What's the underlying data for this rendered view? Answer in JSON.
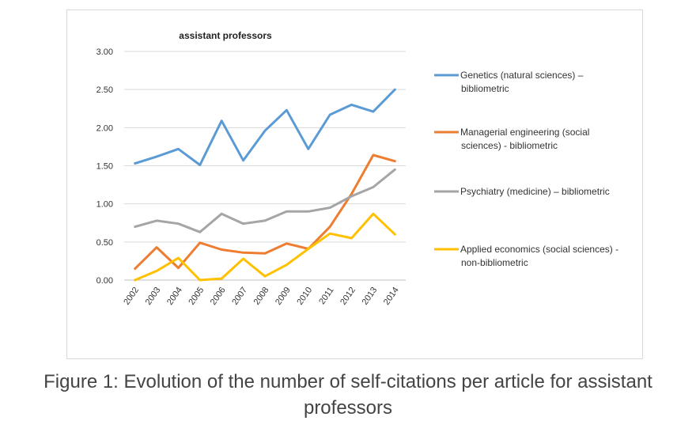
{
  "chart_data": {
    "type": "line",
    "title": "assistant professors",
    "xlabel": "",
    "ylabel": "",
    "ylim": [
      0,
      3
    ],
    "yticks": [
      "0.00",
      "0.50",
      "1.00",
      "1.50",
      "2.00",
      "2.50",
      "3.00"
    ],
    "categories": [
      "2002",
      "2003",
      "2004",
      "2005",
      "2006",
      "2007",
      "2008",
      "2009",
      "2010",
      "2011",
      "2012",
      "2013",
      "2014"
    ],
    "legend_position": "right",
    "series": [
      {
        "name": "Genetics (natural sciences) – bibliometric",
        "legend_lines": [
          "Genetics (natural sciences) –",
          "bibliometric"
        ],
        "color": "#5b9bd5",
        "values": [
          1.53,
          1.62,
          1.72,
          1.51,
          2.09,
          1.57,
          1.96,
          2.23,
          1.72,
          2.17,
          2.3,
          2.21,
          2.5
        ]
      },
      {
        "name": "Managerial engineering (social sciences) - bibliometric",
        "legend_lines": [
          "Managerial engineering (social",
          "sciences) - bibliometric"
        ],
        "color": "#ed7d31",
        "values": [
          0.15,
          0.43,
          0.16,
          0.49,
          0.4,
          0.36,
          0.35,
          0.48,
          0.41,
          0.7,
          1.13,
          1.64,
          1.56
        ]
      },
      {
        "name": "Psychiatry (medicine) – bibliometric",
        "legend_lines": [
          "Psychiatry (medicine) – bibliometric"
        ],
        "color": "#a5a5a5",
        "values": [
          0.7,
          0.78,
          0.74,
          0.63,
          0.87,
          0.74,
          0.78,
          0.9,
          0.9,
          0.95,
          1.1,
          1.22,
          1.45
        ]
      },
      {
        "name": "Applied economics (social sciences) - non-bibliometric",
        "legend_lines": [
          "Applied economics (social sciences) -",
          "non-bibliometric"
        ],
        "color": "#ffc000",
        "values": [
          0.0,
          0.12,
          0.29,
          0.0,
          0.02,
          0.28,
          0.05,
          0.2,
          0.41,
          0.61,
          0.55,
          0.87,
          0.6
        ]
      }
    ]
  },
  "caption": "Figure 1: Evolution of the number of self-citations per article for assistant professors"
}
